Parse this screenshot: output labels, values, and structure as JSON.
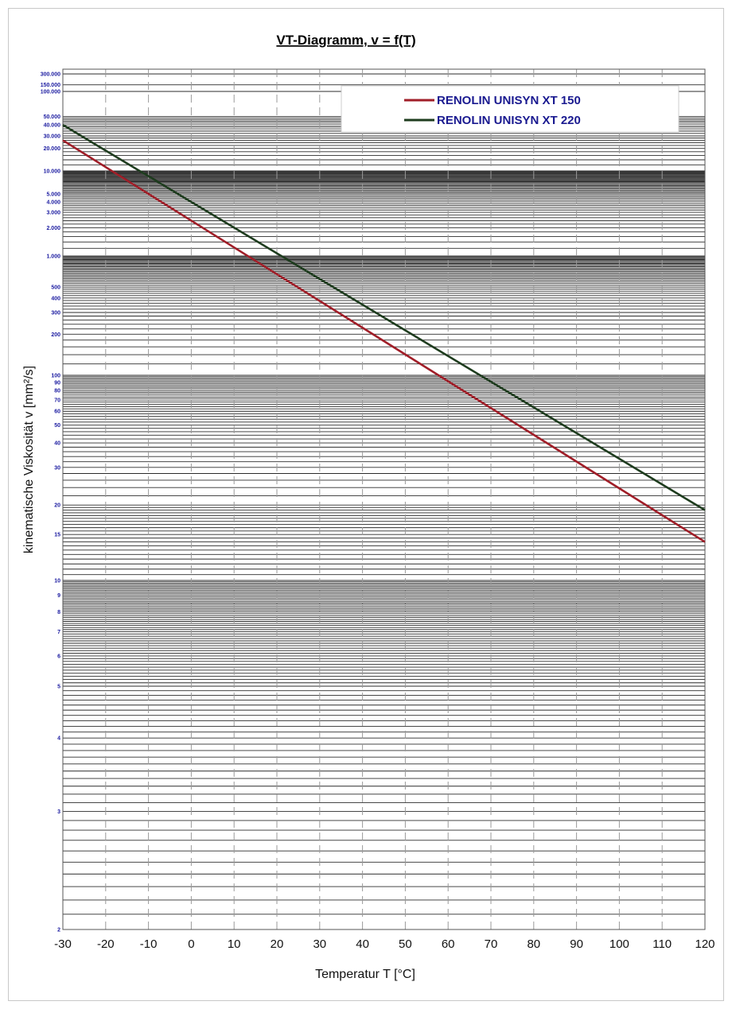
{
  "chart_data": {
    "type": "line",
    "title": "VT-Diagramm, v = f(T)",
    "xlabel": "Temperatur T [°C]",
    "ylabel": "kinematische Viskosität v [mm²/s]",
    "xlim": [
      -30,
      120
    ],
    "ylim": [
      2,
      300000
    ],
    "yscale": "log-log (Ubbelohde viscosity scale)",
    "grid": true,
    "legend_position": "top-right",
    "x_ticks": [
      "-30",
      "-20",
      "-10",
      "0",
      "10",
      "20",
      "30",
      "40",
      "50",
      "60",
      "70",
      "80",
      "90",
      "100",
      "110",
      "120"
    ],
    "y_ticks": [
      {
        "value": 300000,
        "label": "300.000"
      },
      {
        "value": 150000,
        "label": "150.000"
      },
      {
        "value": 100000,
        "label": "100.000"
      },
      {
        "value": 50000,
        "label": "50.000"
      },
      {
        "value": 40000,
        "label": "40.000"
      },
      {
        "value": 30000,
        "label": "30.000"
      },
      {
        "value": 20000,
        "label": "20.000"
      },
      {
        "value": 10000,
        "label": "10.000"
      },
      {
        "value": 5000,
        "label": "5.000"
      },
      {
        "value": 4000,
        "label": "4.000"
      },
      {
        "value": 3000,
        "label": "3.000"
      },
      {
        "value": 2000,
        "label": "2.000"
      },
      {
        "value": 1000,
        "label": "1.000"
      },
      {
        "value": 500,
        "label": "500"
      },
      {
        "value": 400,
        "label": "400"
      },
      {
        "value": 300,
        "label": "300"
      },
      {
        "value": 200,
        "label": "200"
      },
      {
        "value": 100,
        "label": "100"
      },
      {
        "value": 90,
        "label": "90"
      },
      {
        "value": 80,
        "label": "80"
      },
      {
        "value": 70,
        "label": "70"
      },
      {
        "value": 60,
        "label": "60"
      },
      {
        "value": 50,
        "label": "50"
      },
      {
        "value": 40,
        "label": "40"
      },
      {
        "value": 30,
        "label": "30"
      },
      {
        "value": 20,
        "label": "20"
      },
      {
        "value": 15,
        "label": "15"
      },
      {
        "value": 10,
        "label": "10"
      },
      {
        "value": 9,
        "label": "9"
      },
      {
        "value": 8,
        "label": "8"
      },
      {
        "value": 7,
        "label": "7"
      },
      {
        "value": 6,
        "label": "6"
      },
      {
        "value": 5,
        "label": "5"
      },
      {
        "value": 4,
        "label": "4"
      },
      {
        "value": 3,
        "label": "3"
      },
      {
        "value": 2,
        "label": "2"
      }
    ],
    "series": [
      {
        "name": "RENOLIN UNISYN XT 150",
        "color": "#a01e28",
        "x": [
          -30,
          120
        ],
        "y": [
          26000,
          14
        ]
      },
      {
        "name": "RENOLIN UNISYN XT 220",
        "color": "#1e3c1e",
        "x": [
          -30,
          120
        ],
        "y": [
          40000,
          19
        ]
      }
    ]
  }
}
